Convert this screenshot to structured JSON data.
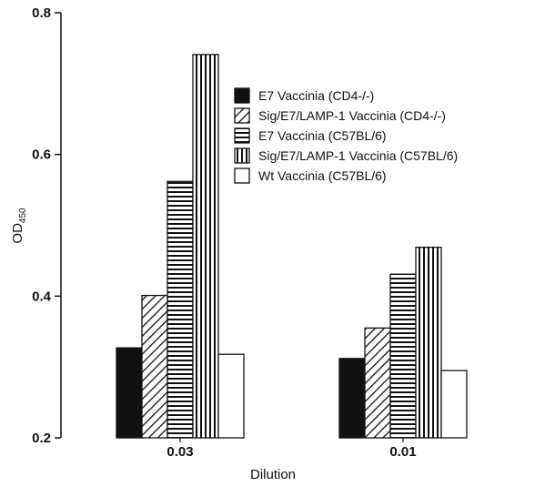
{
  "chart_data": {
    "type": "bar",
    "xlabel": "Dilution",
    "ylabel": "OD",
    "ylabel_sub": "450",
    "categories": [
      "0.03",
      "0.01"
    ],
    "ylim": [
      0.2,
      0.8
    ],
    "yticks": [
      "0.2",
      "0.4",
      "0.6",
      "0.8"
    ],
    "grid": false,
    "legend_position": "top-right",
    "series": [
      {
        "name": "E7 Vaccinia (CD4-/-)",
        "pattern": "solid",
        "values": [
          0.327,
          0.312
        ]
      },
      {
        "name": "Sig/E7/LAMP-1 Vaccinia (CD4-/-)",
        "pattern": "diagonal",
        "values": [
          0.401,
          0.355
        ]
      },
      {
        "name": "E7 Vaccinia (C57BL/6)",
        "pattern": "horizontal",
        "values": [
          0.562,
          0.431
        ]
      },
      {
        "name": "Sig/E7/LAMP-1 Vaccinia (C57BL/6)",
        "pattern": "vertical",
        "values": [
          0.741,
          0.469
        ]
      },
      {
        "name": "Wt Vaccinia (C57BL/6)",
        "pattern": "empty",
        "values": [
          0.318,
          0.295
        ]
      }
    ],
    "colors": {
      "ink": "#111111",
      "background": "#ffffff"
    }
  }
}
